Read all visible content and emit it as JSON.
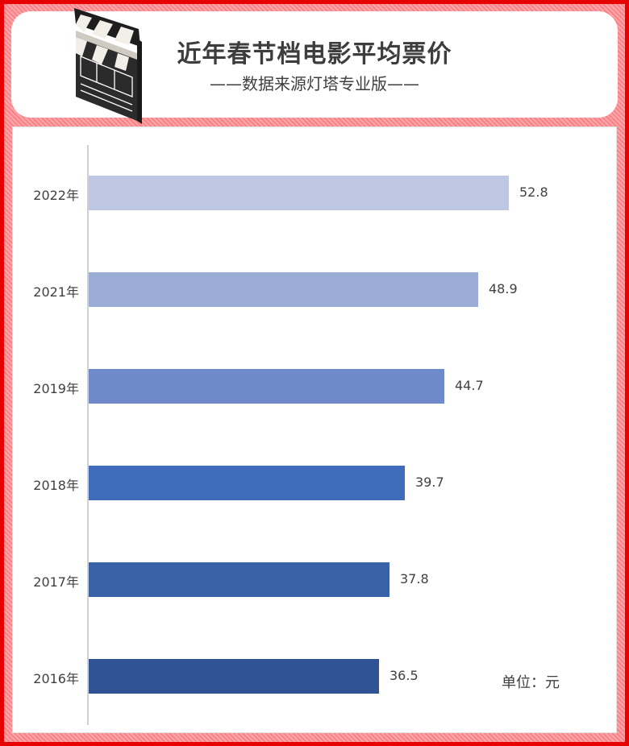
{
  "header": {
    "title": "近年春节档电影平均票价",
    "subtitle": "——数据来源灯塔专业版——",
    "icon": "clapperboard-icon"
  },
  "colors": {
    "outer_border": "#e60000",
    "stripe_a": "#ff7f85",
    "stripe_b": "#f7a9ab",
    "text": "#404040"
  },
  "unit_label": "单位：元",
  "chart_data": {
    "type": "bar",
    "orientation": "horizontal",
    "title": "近年春节档电影平均票价",
    "subtitle": "——数据来源灯塔专业版——",
    "categories": [
      "2022年",
      "2021年",
      "2019年",
      "2018年",
      "2017年",
      "2016年"
    ],
    "values": [
      52.8,
      48.9,
      44.7,
      39.7,
      37.8,
      36.5
    ],
    "value_labels": [
      "52.8",
      "48.9",
      "44.7",
      "39.7",
      "37.8",
      "36.5"
    ],
    "bar_colors": [
      "#bec8e2",
      "#9badd6",
      "#6f8ac9",
      "#3f6dbc",
      "#3a62a7",
      "#2f5394"
    ],
    "xlabel": "",
    "ylabel": "",
    "unit": "单位：元",
    "xlim": [
      0,
      58
    ],
    "grid": false,
    "legend": "none"
  }
}
